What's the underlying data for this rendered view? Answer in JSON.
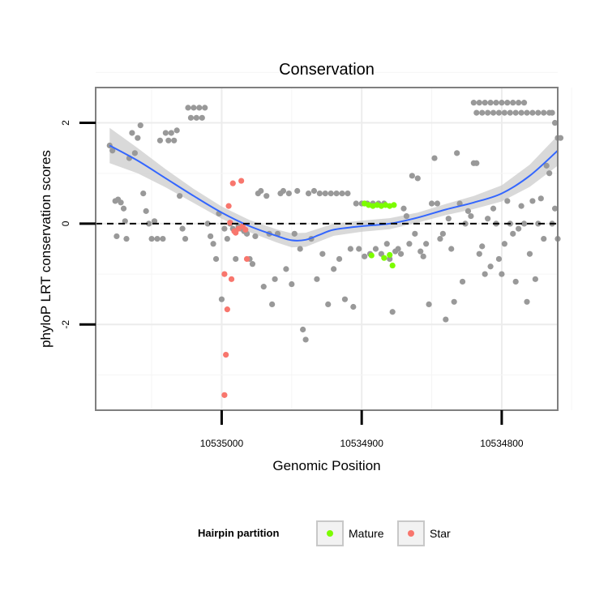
{
  "chart_data": {
    "type": "scatter",
    "title": "Conservation",
    "xlabel": "Genomic Position",
    "ylabel": "phyloP LRT conservation scores",
    "x_reversed": true,
    "xlim": [
      10535090,
      10534760
    ],
    "ylim": [
      -3.7,
      2.7
    ],
    "x_ticks": [
      10535000,
      10534900,
      10534800
    ],
    "x_tick_labels": [
      "10535000",
      "10534900",
      "10534800"
    ],
    "y_ticks": [
      2,
      0,
      -2
    ],
    "y_tick_labels": [
      "2",
      "0",
      "-2"
    ],
    "grid": true,
    "reference_line": {
      "y": 0,
      "style": "dashed"
    },
    "legend": {
      "title": "Hairpin partition",
      "position": "bottom",
      "entries": [
        {
          "label": "Mature",
          "color": "#7cfc00"
        },
        {
          "label": "Star",
          "color": "#f8766d"
        }
      ]
    },
    "colors": {
      "other": "#999999",
      "mature": "#7cfc00",
      "star": "#f8766d",
      "smooth": "#3366ff",
      "band": "#cccccc"
    },
    "series": [
      {
        "key": "other",
        "values": [
          [
            10535080,
            1.55
          ],
          [
            10535078,
            1.45
          ],
          [
            10535076,
            0.45
          ],
          [
            10535074,
            0.48
          ],
          [
            10535072,
            0.42
          ],
          [
            10535070,
            0.3
          ],
          [
            10535069,
            0.05
          ],
          [
            10535075,
            -0.25
          ],
          [
            10535068,
            -0.3
          ],
          [
            10535066,
            1.3
          ],
          [
            10535064,
            1.8
          ],
          [
            10535062,
            1.4
          ],
          [
            10535060,
            1.7
          ],
          [
            10535058,
            1.95
          ],
          [
            10535056,
            0.6
          ],
          [
            10535054,
            0.25
          ],
          [
            10535052,
            0.0
          ],
          [
            10535050,
            -0.3
          ],
          [
            10535048,
            0.05
          ],
          [
            10535046,
            -0.3
          ],
          [
            10535044,
            1.65
          ],
          [
            10535042,
            -0.3
          ],
          [
            10535040,
            1.8
          ],
          [
            10535038,
            1.65
          ],
          [
            10535036,
            1.8
          ],
          [
            10535034,
            1.65
          ],
          [
            10535032,
            1.85
          ],
          [
            10535030,
            0.55
          ],
          [
            10535028,
            -0.1
          ],
          [
            10535026,
            -0.3
          ],
          [
            10535024,
            2.3
          ],
          [
            10535022,
            2.1
          ],
          [
            10535020,
            2.3
          ],
          [
            10535018,
            2.1
          ],
          [
            10535016,
            2.3
          ],
          [
            10535014,
            2.1
          ],
          [
            10535012,
            2.3
          ],
          [
            10535010,
            0.0
          ],
          [
            10535008,
            -0.25
          ],
          [
            10535006,
            -0.4
          ],
          [
            10535004,
            -0.7
          ],
          [
            10535002,
            0.2
          ],
          [
            10535000,
            -1.5
          ],
          [
            10534998,
            -0.1
          ],
          [
            10534996,
            -0.3
          ],
          [
            10534994,
            0.0
          ],
          [
            10534992,
            -0.1
          ],
          [
            10534990,
            -0.7
          ],
          [
            10534988,
            -0.05
          ],
          [
            10534986,
            -0.1
          ],
          [
            10534984,
            -0.15
          ],
          [
            10534982,
            -0.2
          ],
          [
            10534980,
            -0.7
          ],
          [
            10534978,
            -0.8
          ],
          [
            10534976,
            -0.25
          ],
          [
            10534974,
            0.6
          ],
          [
            10534972,
            0.65
          ],
          [
            10534970,
            -1.25
          ],
          [
            10534968,
            0.55
          ],
          [
            10534966,
            -0.2
          ],
          [
            10534964,
            -1.6
          ],
          [
            10534962,
            -1.1
          ],
          [
            10534960,
            -0.2
          ],
          [
            10534958,
            0.6
          ],
          [
            10534956,
            0.65
          ],
          [
            10534954,
            -0.9
          ],
          [
            10534952,
            0.6
          ],
          [
            10534950,
            -1.2
          ],
          [
            10534948,
            -0.2
          ],
          [
            10534946,
            0.65
          ],
          [
            10534944,
            -0.5
          ],
          [
            10534942,
            -2.1
          ],
          [
            10534940,
            -2.3
          ],
          [
            10534938,
            0.6
          ],
          [
            10534936,
            -0.3
          ],
          [
            10534934,
            0.65
          ],
          [
            10534932,
            -1.1
          ],
          [
            10534930,
            0.6
          ],
          [
            10534928,
            -0.6
          ],
          [
            10534926,
            0.6
          ],
          [
            10534924,
            -1.6
          ],
          [
            10534922,
            0.6
          ],
          [
            10534920,
            -0.9
          ],
          [
            10534918,
            0.6
          ],
          [
            10534916,
            -0.7
          ],
          [
            10534914,
            0.6
          ],
          [
            10534912,
            -1.5
          ],
          [
            10534910,
            0.6
          ],
          [
            10534908,
            -0.5
          ],
          [
            10534906,
            -1.65
          ],
          [
            10534904,
            0.4
          ],
          [
            10534902,
            -0.5
          ],
          [
            10534900,
            0.4
          ],
          [
            10534898,
            -0.65
          ],
          [
            10534896,
            0.4
          ],
          [
            10534894,
            -0.6
          ],
          [
            10534892,
            0.4
          ],
          [
            10534890,
            -0.5
          ],
          [
            10534888,
            0.4
          ],
          [
            10534886,
            -0.6
          ],
          [
            10534884,
            0.4
          ],
          [
            10534882,
            -0.4
          ],
          [
            10534880,
            -0.7
          ],
          [
            10534878,
            -1.75
          ],
          [
            10534876,
            -0.55
          ],
          [
            10534874,
            -0.5
          ],
          [
            10534872,
            -0.6
          ],
          [
            10534870,
            0.3
          ],
          [
            10534868,
            0.15
          ],
          [
            10534866,
            -0.4
          ],
          [
            10534864,
            0.95
          ],
          [
            10534862,
            -0.2
          ],
          [
            10534860,
            0.9
          ],
          [
            10534858,
            -0.55
          ],
          [
            10534856,
            -0.65
          ],
          [
            10534854,
            -0.4
          ],
          [
            10534852,
            -1.6
          ],
          [
            10534850,
            0.4
          ],
          [
            10534848,
            1.3
          ],
          [
            10534846,
            0.4
          ],
          [
            10534844,
            -0.3
          ],
          [
            10534842,
            -0.2
          ],
          [
            10534840,
            -1.9
          ],
          [
            10534838,
            0.1
          ],
          [
            10534836,
            -0.5
          ],
          [
            10534834,
            -1.55
          ],
          [
            10534832,
            1.4
          ],
          [
            10534830,
            0.4
          ],
          [
            10534828,
            -1.15
          ],
          [
            10534826,
            0.0
          ],
          [
            10534824,
            0.25
          ],
          [
            10534822,
            0.15
          ],
          [
            10534820,
            1.2
          ],
          [
            10534818,
            1.2
          ],
          [
            10534816,
            -0.6
          ],
          [
            10534814,
            -0.45
          ],
          [
            10534812,
            -1.0
          ],
          [
            10534810,
            0.1
          ],
          [
            10534808,
            -0.85
          ],
          [
            10534806,
            0.3
          ],
          [
            10534804,
            0.0
          ],
          [
            10534802,
            -0.7
          ],
          [
            10534800,
            -1.0
          ],
          [
            10534798,
            -0.4
          ],
          [
            10534796,
            0.45
          ],
          [
            10534794,
            0.0
          ],
          [
            10534792,
            -0.2
          ],
          [
            10534790,
            -1.15
          ],
          [
            10534788,
            -0.1
          ],
          [
            10534786,
            0.35
          ],
          [
            10534784,
            0.0
          ],
          [
            10534782,
            -1.55
          ],
          [
            10534780,
            -0.6
          ],
          [
            10534778,
            0.45
          ],
          [
            10534776,
            -1.1
          ],
          [
            10534774,
            0.0
          ],
          [
            10534772,
            0.5
          ],
          [
            10534770,
            -0.3
          ],
          [
            10534768,
            1.15
          ],
          [
            10534766,
            1.0
          ],
          [
            10534764,
            0.0
          ],
          [
            10534762,
            0.3
          ],
          [
            10534760,
            -0.3
          ],
          [
            10534820,
            2.4
          ],
          [
            10534816,
            2.4
          ],
          [
            10534812,
            2.4
          ],
          [
            10534808,
            2.4
          ],
          [
            10534804,
            2.4
          ],
          [
            10534800,
            2.4
          ],
          [
            10534796,
            2.4
          ],
          [
            10534792,
            2.4
          ],
          [
            10534788,
            2.4
          ],
          [
            10534784,
            2.4
          ],
          [
            10534818,
            2.2
          ],
          [
            10534814,
            2.2
          ],
          [
            10534810,
            2.2
          ],
          [
            10534806,
            2.2
          ],
          [
            10534802,
            2.2
          ],
          [
            10534798,
            2.2
          ],
          [
            10534794,
            2.2
          ],
          [
            10534790,
            2.2
          ],
          [
            10534786,
            2.2
          ],
          [
            10534782,
            2.2
          ],
          [
            10534778,
            2.2
          ],
          [
            10534774,
            2.2
          ],
          [
            10534770,
            2.2
          ],
          [
            10534766,
            2.2
          ],
          [
            10534764,
            2.2
          ],
          [
            10534762,
            2.0
          ],
          [
            10534760,
            1.7
          ],
          [
            10534758,
            1.7
          ]
        ]
      },
      {
        "key": "mature",
        "name": "Mature",
        "values": [
          [
            10534898,
            0.4
          ],
          [
            10534895,
            0.37
          ],
          [
            10534892,
            0.35
          ],
          [
            10534889,
            0.37
          ],
          [
            10534886,
            0.35
          ],
          [
            10534883,
            0.37
          ],
          [
            10534880,
            0.35
          ],
          [
            10534877,
            0.37
          ],
          [
            10534893,
            -0.63
          ],
          [
            10534884,
            -0.68
          ],
          [
            10534880,
            -0.62
          ],
          [
            10534878,
            -0.83
          ]
        ]
      },
      {
        "key": "star",
        "name": "Star",
        "values": [
          [
            10534992,
            0.8
          ],
          [
            10534986,
            0.85
          ],
          [
            10534995,
            0.35
          ],
          [
            10534994,
            0.02
          ],
          [
            10534990,
            -0.18
          ],
          [
            10534988,
            -0.1
          ],
          [
            10534985,
            -0.05
          ],
          [
            10534983,
            -0.12
          ],
          [
            10534982,
            -0.7
          ],
          [
            10534998,
            -1.0
          ],
          [
            10534993,
            -1.1
          ],
          [
            10534996,
            -1.7
          ],
          [
            10534997,
            -2.6
          ],
          [
            10534998,
            -3.4
          ],
          [
            10534991,
            -0.15
          ]
        ]
      }
    ],
    "smooth": {
      "x": [
        10535080,
        10535060,
        10535040,
        10535020,
        10535000,
        10534980,
        10534960,
        10534950,
        10534940,
        10534930,
        10534920,
        10534900,
        10534880,
        10534860,
        10534840,
        10534820,
        10534800,
        10534780,
        10534760
      ],
      "y": [
        1.55,
        1.25,
        0.9,
        0.55,
        0.22,
        -0.05,
        -0.25,
        -0.33,
        -0.32,
        -0.22,
        -0.12,
        -0.05,
        0.0,
        0.12,
        0.28,
        0.42,
        0.6,
        0.95,
        1.45
      ],
      "band_half_width": [
        0.35,
        0.25,
        0.18,
        0.14,
        0.12,
        0.12,
        0.13,
        0.14,
        0.14,
        0.13,
        0.12,
        0.11,
        0.11,
        0.1,
        0.11,
        0.13,
        0.16,
        0.22,
        0.3
      ]
    }
  }
}
